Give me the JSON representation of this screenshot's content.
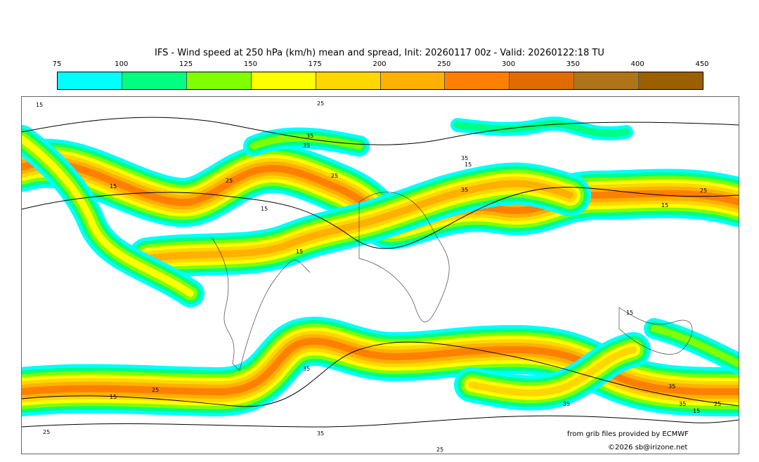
{
  "title": "IFS - Wind speed at 250 hPa (km/h) mean and spread, Init: 20260117 00z - Valid: 20260122:18 TU",
  "colorbar": {
    "ticks": [
      "75",
      "100",
      "125",
      "150",
      "175",
      "200",
      "250",
      "300",
      "350",
      "400",
      "450"
    ],
    "colors": [
      "#00ffff",
      "#00ff80",
      "#80ff00",
      "#ffff00",
      "#ffd700",
      "#ffb000",
      "#ff8000",
      "#e06c00",
      "#b07418",
      "#9a6000"
    ]
  },
  "contour_labels": [
    "15",
    "25",
    "35",
    "15",
    "25",
    "25",
    "35",
    "15",
    "15",
    "35",
    "15",
    "25",
    "35",
    "15",
    "15",
    "25",
    "25",
    "35",
    "25",
    "35",
    "15",
    "35",
    "25",
    "15",
    "35",
    "35"
  ],
  "credits": {
    "source": "from grib files provided by ECMWF",
    "copyright": "©2026 sb@irizone.net"
  }
}
